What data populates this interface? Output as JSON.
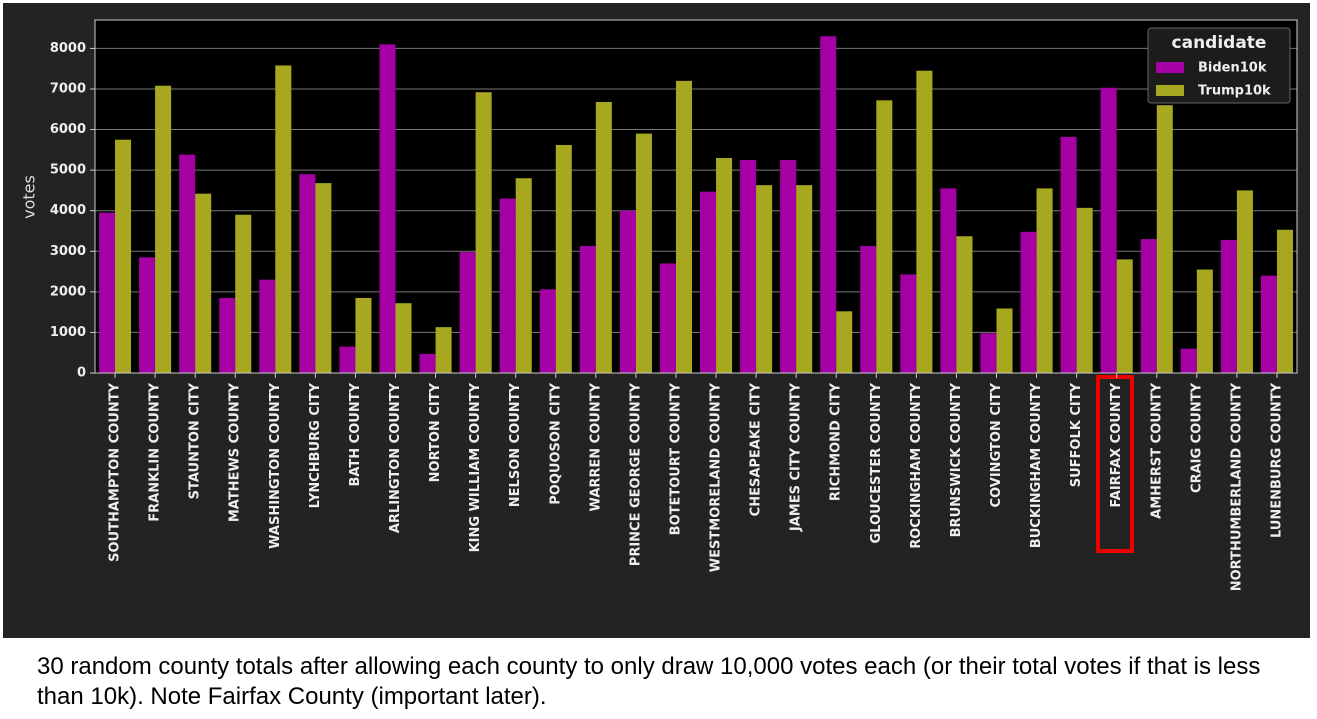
{
  "chart_data": {
    "type": "bar",
    "y_label": "votes",
    "categories": [
      "SOUTHAMPTON COUNTY",
      "FRANKLIN COUNTY",
      "STAUNTON CITY",
      "MATHEWS COUNTY",
      "WASHINGTON COUNTY",
      "LYNCHBURG CITY",
      "BATH COUNTY",
      "ARLINGTON COUNTY",
      "NORTON CITY",
      "KING WILLIAM COUNTY",
      "NELSON COUNTY",
      "POQUOSON CITY",
      "WARREN COUNTY",
      "PRINCE GEORGE COUNTY",
      "BOTETOURT COUNTY",
      "WESTMORELAND COUNTY",
      "CHESAPEAKE CITY",
      "JAMES CITY COUNTY",
      "RICHMOND CITY",
      "GLOUCESTER COUNTY",
      "ROCKINGHAM COUNTY",
      "BRUNSWICK COUNTY",
      "COVINGTON CITY",
      "BUCKINGHAM COUNTY",
      "SUFFOLK CITY",
      "FAIRFAX COUNTY",
      "AMHERST COUNTY",
      "CRAIG COUNTY",
      "NORTHUMBERLAND COUNTY",
      "LUNENBURG COUNTY"
    ],
    "series": [
      {
        "name": "Biden10k",
        "color": "#a400a4",
        "values": [
          3950,
          2850,
          5380,
          1850,
          2300,
          4900,
          650,
          8100,
          470,
          2980,
          4300,
          2060,
          3130,
          4000,
          2700,
          4470,
          5250,
          5250,
          8300,
          3130,
          2430,
          4550,
          980,
          3480,
          5820,
          7030,
          3300,
          600,
          3280,
          2400
        ]
      },
      {
        "name": "Trump10k",
        "color": "#a8a820",
        "values": [
          5750,
          7080,
          4420,
          3900,
          7580,
          4680,
          1850,
          1720,
          1130,
          6920,
          4800,
          5620,
          6680,
          5900,
          7200,
          5300,
          4630,
          4630,
          1520,
          6720,
          7450,
          3370,
          1590,
          4550,
          4070,
          2800,
          6600,
          2550,
          4500,
          3530
        ]
      }
    ],
    "legend_title": "candidate",
    "legend_position": "upper right",
    "ylim": [
      0,
      8700
    ],
    "yticks": [
      0,
      1000,
      2000,
      3000,
      4000,
      5000,
      6000,
      7000,
      8000
    ],
    "grid": true
  },
  "caption": "30 random county totals after allowing each county to only draw 10,000 votes each (or their total votes if that is less than 10k). Note Fairfax County (important later)."
}
